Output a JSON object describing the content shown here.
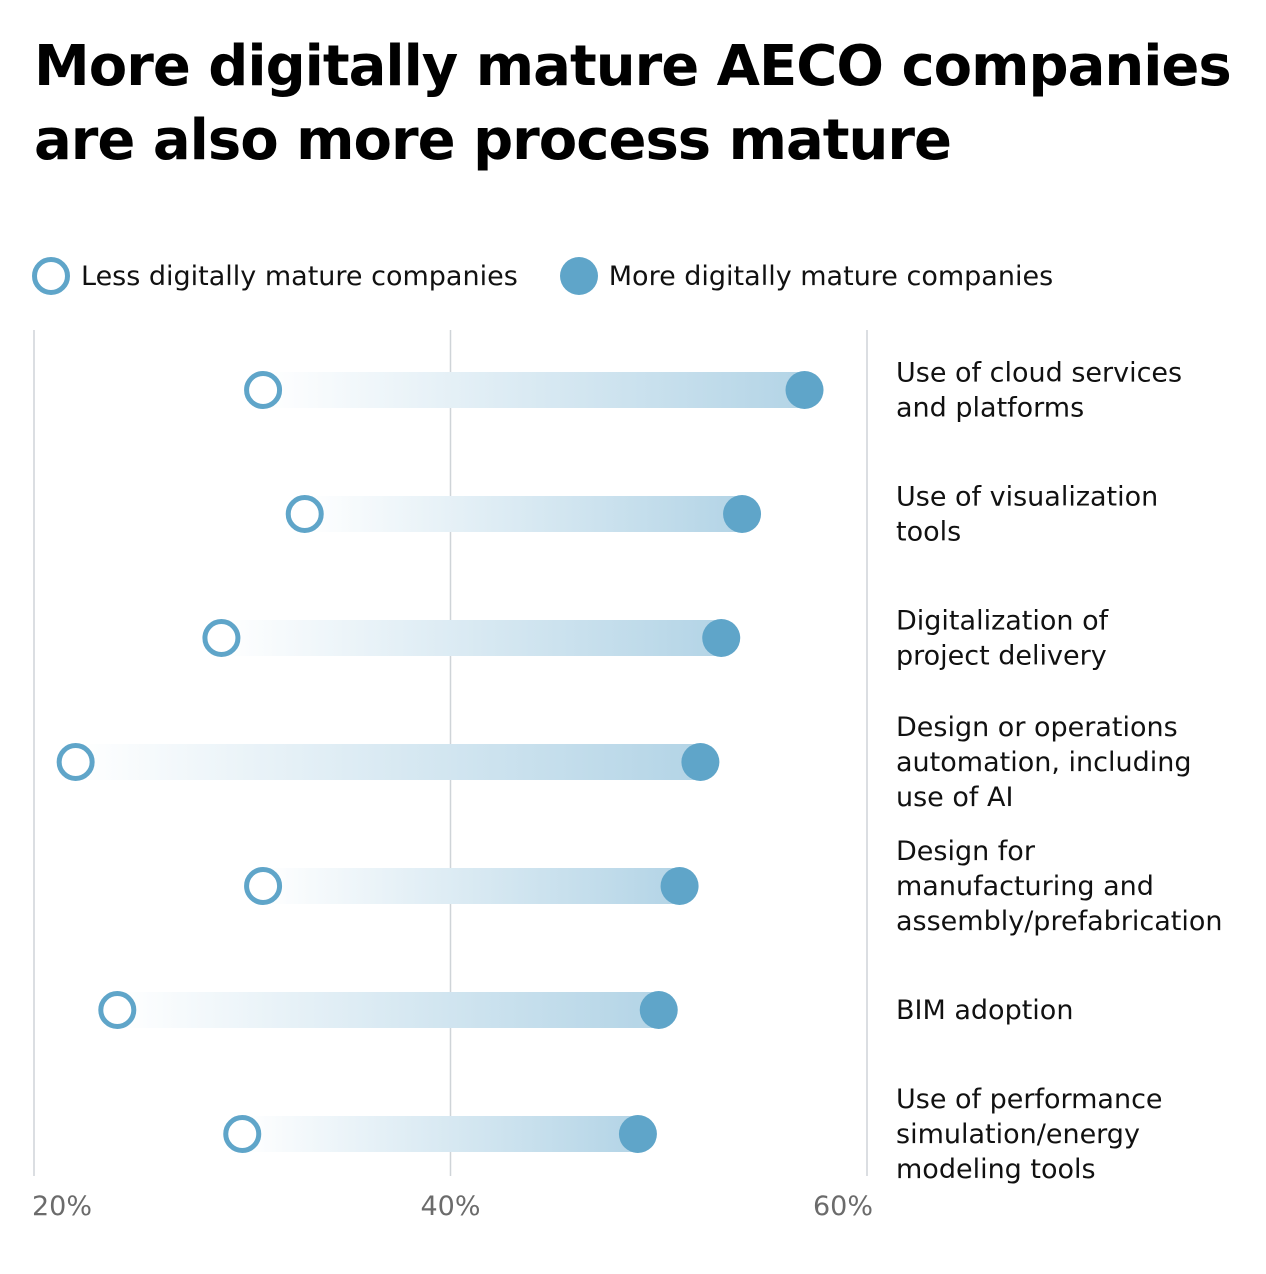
{
  "title": {
    "line1": "More digitally mature AECO companies",
    "line2": "are also more process mature"
  },
  "legend": {
    "less": "Less digitally mature companies",
    "more": "More digitally mature companies"
  },
  "colors": {
    "accent": "#5fa5c9",
    "bar": "#b3d4e6",
    "gridline": "#cfd4d8",
    "tick_text": "#6b6b6b"
  },
  "chart_data": {
    "type": "dumbbell",
    "xlim": [
      20,
      60
    ],
    "x_ticks": [
      "20%",
      "40%",
      "60%"
    ],
    "x_tick_values": [
      20,
      40,
      60
    ],
    "grid": true,
    "legend_position": "top-left",
    "label_position": "right",
    "series": [
      {
        "name": "Less digitally mature companies",
        "marker": "hollow circle"
      },
      {
        "name": "More digitally mature companies",
        "marker": "filled circle"
      }
    ],
    "rows": [
      {
        "label": [
          "Use of cloud services",
          "and platforms"
        ],
        "less": 31,
        "more": 57
      },
      {
        "label": [
          "Use of visualization",
          "tools"
        ],
        "less": 33,
        "more": 54
      },
      {
        "label": [
          "Digitalization of",
          "project delivery"
        ],
        "less": 29,
        "more": 53
      },
      {
        "label": [
          "Design or operations",
          "automation, including",
          "use of AI"
        ],
        "less": 22,
        "more": 52
      },
      {
        "label": [
          "Design for",
          "manufacturing and",
          "assembly/prefabrication"
        ],
        "less": 31,
        "more": 51
      },
      {
        "label": [
          "BIM adoption"
        ],
        "less": 24,
        "more": 50
      },
      {
        "label": [
          "Use of performance",
          "simulation/energy",
          "modeling tools"
        ],
        "less": 30,
        "more": 49
      }
    ]
  }
}
